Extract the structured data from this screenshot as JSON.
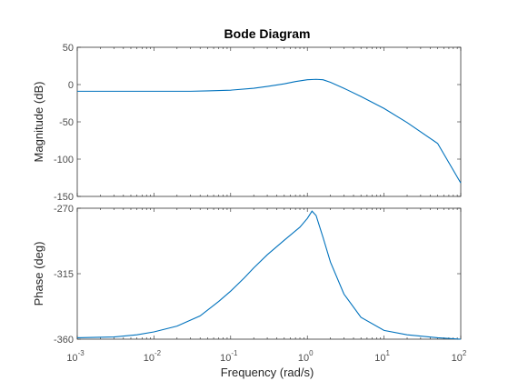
{
  "chart_data": [
    {
      "type": "line",
      "title": "Bode Diagram",
      "xlabel": "Frequency  (rad/s)",
      "ylabel": "Magnitude (dB)",
      "x_scale": "log",
      "xlim": [
        0.001,
        100
      ],
      "ylim": [
        -150,
        50
      ],
      "yticks": [
        "50",
        "0",
        "-50",
        "-100",
        "-150"
      ],
      "xtick_labels_shown": false,
      "grid": false,
      "series": [
        {
          "color": "#0072BD",
          "x": [
            0.001,
            0.005,
            0.01,
            0.03,
            0.05,
            0.1,
            0.2,
            0.3,
            0.5,
            0.7,
            1.0,
            1.3,
            1.6,
            2.0,
            3.0,
            5.0,
            10,
            20,
            50,
            100
          ],
          "y": [
            -9,
            -9,
            -9,
            -9,
            -8.5,
            -7.5,
            -5,
            -2.5,
            1,
            4,
            6.5,
            7,
            6.5,
            3,
            -5,
            -16,
            -32,
            -51,
            -79,
            -132
          ]
        }
      ]
    },
    {
      "type": "line",
      "title": "",
      "xlabel": "Frequency  (rad/s)",
      "ylabel": "Phase (deg)",
      "x_scale": "log",
      "xlim": [
        0.001,
        100
      ],
      "ylim": [
        -360,
        -270
      ],
      "yticks": [
        "-270",
        "-315",
        "-360"
      ],
      "xtick_labels": [
        {
          "base": "10",
          "exp": "-3"
        },
        {
          "base": "10",
          "exp": "-2"
        },
        {
          "base": "10",
          "exp": "-1"
        },
        {
          "base": "10",
          "exp": "0"
        },
        {
          "base": "10",
          "exp": "1"
        },
        {
          "base": "10",
          "exp": "2"
        }
      ],
      "grid": false,
      "series": [
        {
          "color": "#0072BD",
          "x": [
            0.001,
            0.003,
            0.006,
            0.01,
            0.02,
            0.04,
            0.07,
            0.1,
            0.15,
            0.2,
            0.3,
            0.5,
            0.8,
            1.0,
            1.15,
            1.3,
            1.6,
            2.0,
            3.0,
            5.0,
            10,
            20,
            50,
            100
          ],
          "y": [
            -359,
            -358.5,
            -357,
            -355,
            -351,
            -344,
            -334,
            -327,
            -318,
            -311,
            -302,
            -292,
            -283,
            -277,
            -272,
            -275,
            -290,
            -307,
            -329,
            -345,
            -354,
            -357,
            -359,
            -360
          ]
        }
      ]
    }
  ]
}
